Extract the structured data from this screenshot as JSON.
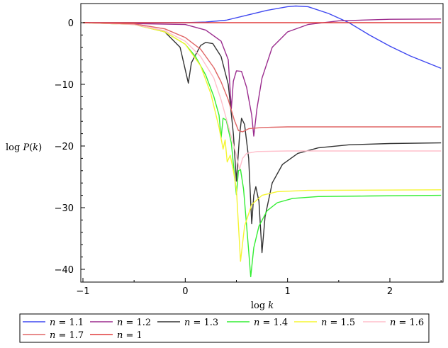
{
  "chart_data": {
    "type": "line",
    "xlabel": "log k",
    "ylabel": "log P(k)",
    "xlim": [
      -1,
      2.5
    ],
    "ylim": [
      -41.5,
      3
    ],
    "x_ticks": [
      -1,
      0,
      1,
      2
    ],
    "y_ticks": [
      0,
      -10,
      -20,
      -30,
      -40
    ],
    "grid": false,
    "legend_position": "bottom",
    "series": [
      {
        "name": "n = 1.1",
        "color": "#3f48f0",
        "points": [
          [
            -1,
            0
          ],
          [
            -0.5,
            0
          ],
          [
            0,
            0
          ],
          [
            0.2,
            0.1
          ],
          [
            0.4,
            0.4
          ],
          [
            0.6,
            1.2
          ],
          [
            0.8,
            2.0
          ],
          [
            1.0,
            2.6
          ],
          [
            1.08,
            2.7
          ],
          [
            1.2,
            2.6
          ],
          [
            1.4,
            1.5
          ],
          [
            1.6,
            0.0
          ],
          [
            1.8,
            -2.0
          ],
          [
            2.0,
            -3.8
          ],
          [
            2.2,
            -5.4
          ],
          [
            2.5,
            -7.4
          ]
        ]
      },
      {
        "name": "n = 1.2",
        "color": "#9b2c8e",
        "points": [
          [
            -1,
            0
          ],
          [
            0,
            -0.3
          ],
          [
            0.2,
            -1.2
          ],
          [
            0.35,
            -3.0
          ],
          [
            0.42,
            -6.0
          ],
          [
            0.45,
            -14.0
          ],
          [
            0.47,
            -9.5
          ],
          [
            0.5,
            -7.8
          ],
          [
            0.55,
            -7.9
          ],
          [
            0.6,
            -10.5
          ],
          [
            0.65,
            -15.0
          ],
          [
            0.67,
            -18.4
          ],
          [
            0.7,
            -14.0
          ],
          [
            0.75,
            -9.0
          ],
          [
            0.85,
            -4.0
          ],
          [
            1.0,
            -1.5
          ],
          [
            1.2,
            -0.3
          ],
          [
            1.5,
            0.3
          ],
          [
            2.0,
            0.55
          ],
          [
            2.5,
            0.6
          ]
        ]
      },
      {
        "name": "n = 1.3",
        "color": "#333333",
        "points": [
          [
            -1,
            0
          ],
          [
            -0.5,
            -0.2
          ],
          [
            -0.2,
            -1.5
          ],
          [
            -0.05,
            -4.0
          ],
          [
            0.03,
            -9.8
          ],
          [
            0.06,
            -6.5
          ],
          [
            0.15,
            -3.7
          ],
          [
            0.2,
            -3.2
          ],
          [
            0.27,
            -3.4
          ],
          [
            0.35,
            -5.5
          ],
          [
            0.42,
            -10.0
          ],
          [
            0.47,
            -18.0
          ],
          [
            0.5,
            -25.7
          ],
          [
            0.53,
            -18.5
          ],
          [
            0.55,
            -15.5
          ],
          [
            0.58,
            -16.5
          ],
          [
            0.62,
            -22.0
          ],
          [
            0.65,
            -32.6
          ],
          [
            0.67,
            -28.0
          ],
          [
            0.69,
            -26.6
          ],
          [
            0.72,
            -29.0
          ],
          [
            0.75,
            -37.3
          ],
          [
            0.78,
            -31.5
          ],
          [
            0.85,
            -26.0
          ],
          [
            0.95,
            -23.0
          ],
          [
            1.1,
            -21.2
          ],
          [
            1.3,
            -20.3
          ],
          [
            1.6,
            -19.8
          ],
          [
            2.0,
            -19.6
          ],
          [
            2.5,
            -19.5
          ]
        ]
      },
      {
        "name": "n = 1.4",
        "color": "#33ee33",
        "points": [
          [
            -1,
            0
          ],
          [
            -0.5,
            -0.3
          ],
          [
            -0.2,
            -1.5
          ],
          [
            0,
            -3.5
          ],
          [
            0.1,
            -5.5
          ],
          [
            0.2,
            -8.5
          ],
          [
            0.28,
            -12.0
          ],
          [
            0.33,
            -15.0
          ],
          [
            0.35,
            -18.7
          ],
          [
            0.37,
            -15.5
          ],
          [
            0.4,
            -15.8
          ],
          [
            0.45,
            -19.5
          ],
          [
            0.5,
            -27.9
          ],
          [
            0.52,
            -24.0
          ],
          [
            0.54,
            -23.8
          ],
          [
            0.57,
            -27.0
          ],
          [
            0.61,
            -35.0
          ],
          [
            0.64,
            -41.2
          ],
          [
            0.67,
            -36.5
          ],
          [
            0.72,
            -33.0
          ],
          [
            0.8,
            -30.5
          ],
          [
            0.9,
            -29.2
          ],
          [
            1.05,
            -28.5
          ],
          [
            1.3,
            -28.2
          ],
          [
            1.8,
            -28.1
          ],
          [
            2.5,
            -28.0
          ]
        ]
      },
      {
        "name": "n = 1.5",
        "color": "#f5f532",
        "points": [
          [
            -1,
            0
          ],
          [
            -0.5,
            -0.3
          ],
          [
            -0.2,
            -1.5
          ],
          [
            0,
            -3.5
          ],
          [
            0.15,
            -7.0
          ],
          [
            0.25,
            -11.5
          ],
          [
            0.33,
            -17.0
          ],
          [
            0.37,
            -20.5
          ],
          [
            0.39,
            -19.0
          ],
          [
            0.41,
            -22.6
          ],
          [
            0.44,
            -21.5
          ],
          [
            0.47,
            -24.0
          ],
          [
            0.5,
            -27.0
          ],
          [
            0.54,
            -38.7
          ],
          [
            0.58,
            -33.0
          ],
          [
            0.65,
            -29.5
          ],
          [
            0.75,
            -28.0
          ],
          [
            0.9,
            -27.4
          ],
          [
            1.2,
            -27.2
          ],
          [
            2.5,
            -27.1
          ]
        ]
      },
      {
        "name": "n = 1.6",
        "color": "#ffbfcb",
        "points": [
          [
            -1,
            0
          ],
          [
            -0.5,
            -0.3
          ],
          [
            -0.2,
            -1.3
          ],
          [
            0,
            -3.0
          ],
          [
            0.15,
            -5.5
          ],
          [
            0.28,
            -9.0
          ],
          [
            0.35,
            -12.5
          ],
          [
            0.4,
            -15.5
          ],
          [
            0.45,
            -18.5
          ],
          [
            0.5,
            -21.5
          ],
          [
            0.53,
            -23.8
          ],
          [
            0.56,
            -22.0
          ],
          [
            0.6,
            -21.2
          ],
          [
            0.7,
            -20.9
          ],
          [
            1.0,
            -20.8
          ],
          [
            2.5,
            -20.8
          ]
        ]
      },
      {
        "name": "n = 1.7",
        "color": "#e06666",
        "points": [
          [
            -1,
            0
          ],
          [
            -0.5,
            -0.2
          ],
          [
            -0.2,
            -1.0
          ],
          [
            0,
            -2.4
          ],
          [
            0.15,
            -4.3
          ],
          [
            0.28,
            -7.3
          ],
          [
            0.35,
            -9.6
          ],
          [
            0.42,
            -12.5
          ],
          [
            0.48,
            -15.8
          ],
          [
            0.52,
            -17.5
          ],
          [
            0.56,
            -17.7
          ],
          [
            0.62,
            -17.2
          ],
          [
            0.75,
            -17.0
          ],
          [
            1.0,
            -16.9
          ],
          [
            2.5,
            -16.9
          ]
        ]
      },
      {
        "name": "n = 1",
        "color": "#e03c3c",
        "points": [
          [
            -1,
            0
          ],
          [
            2.5,
            0
          ]
        ]
      }
    ]
  }
}
